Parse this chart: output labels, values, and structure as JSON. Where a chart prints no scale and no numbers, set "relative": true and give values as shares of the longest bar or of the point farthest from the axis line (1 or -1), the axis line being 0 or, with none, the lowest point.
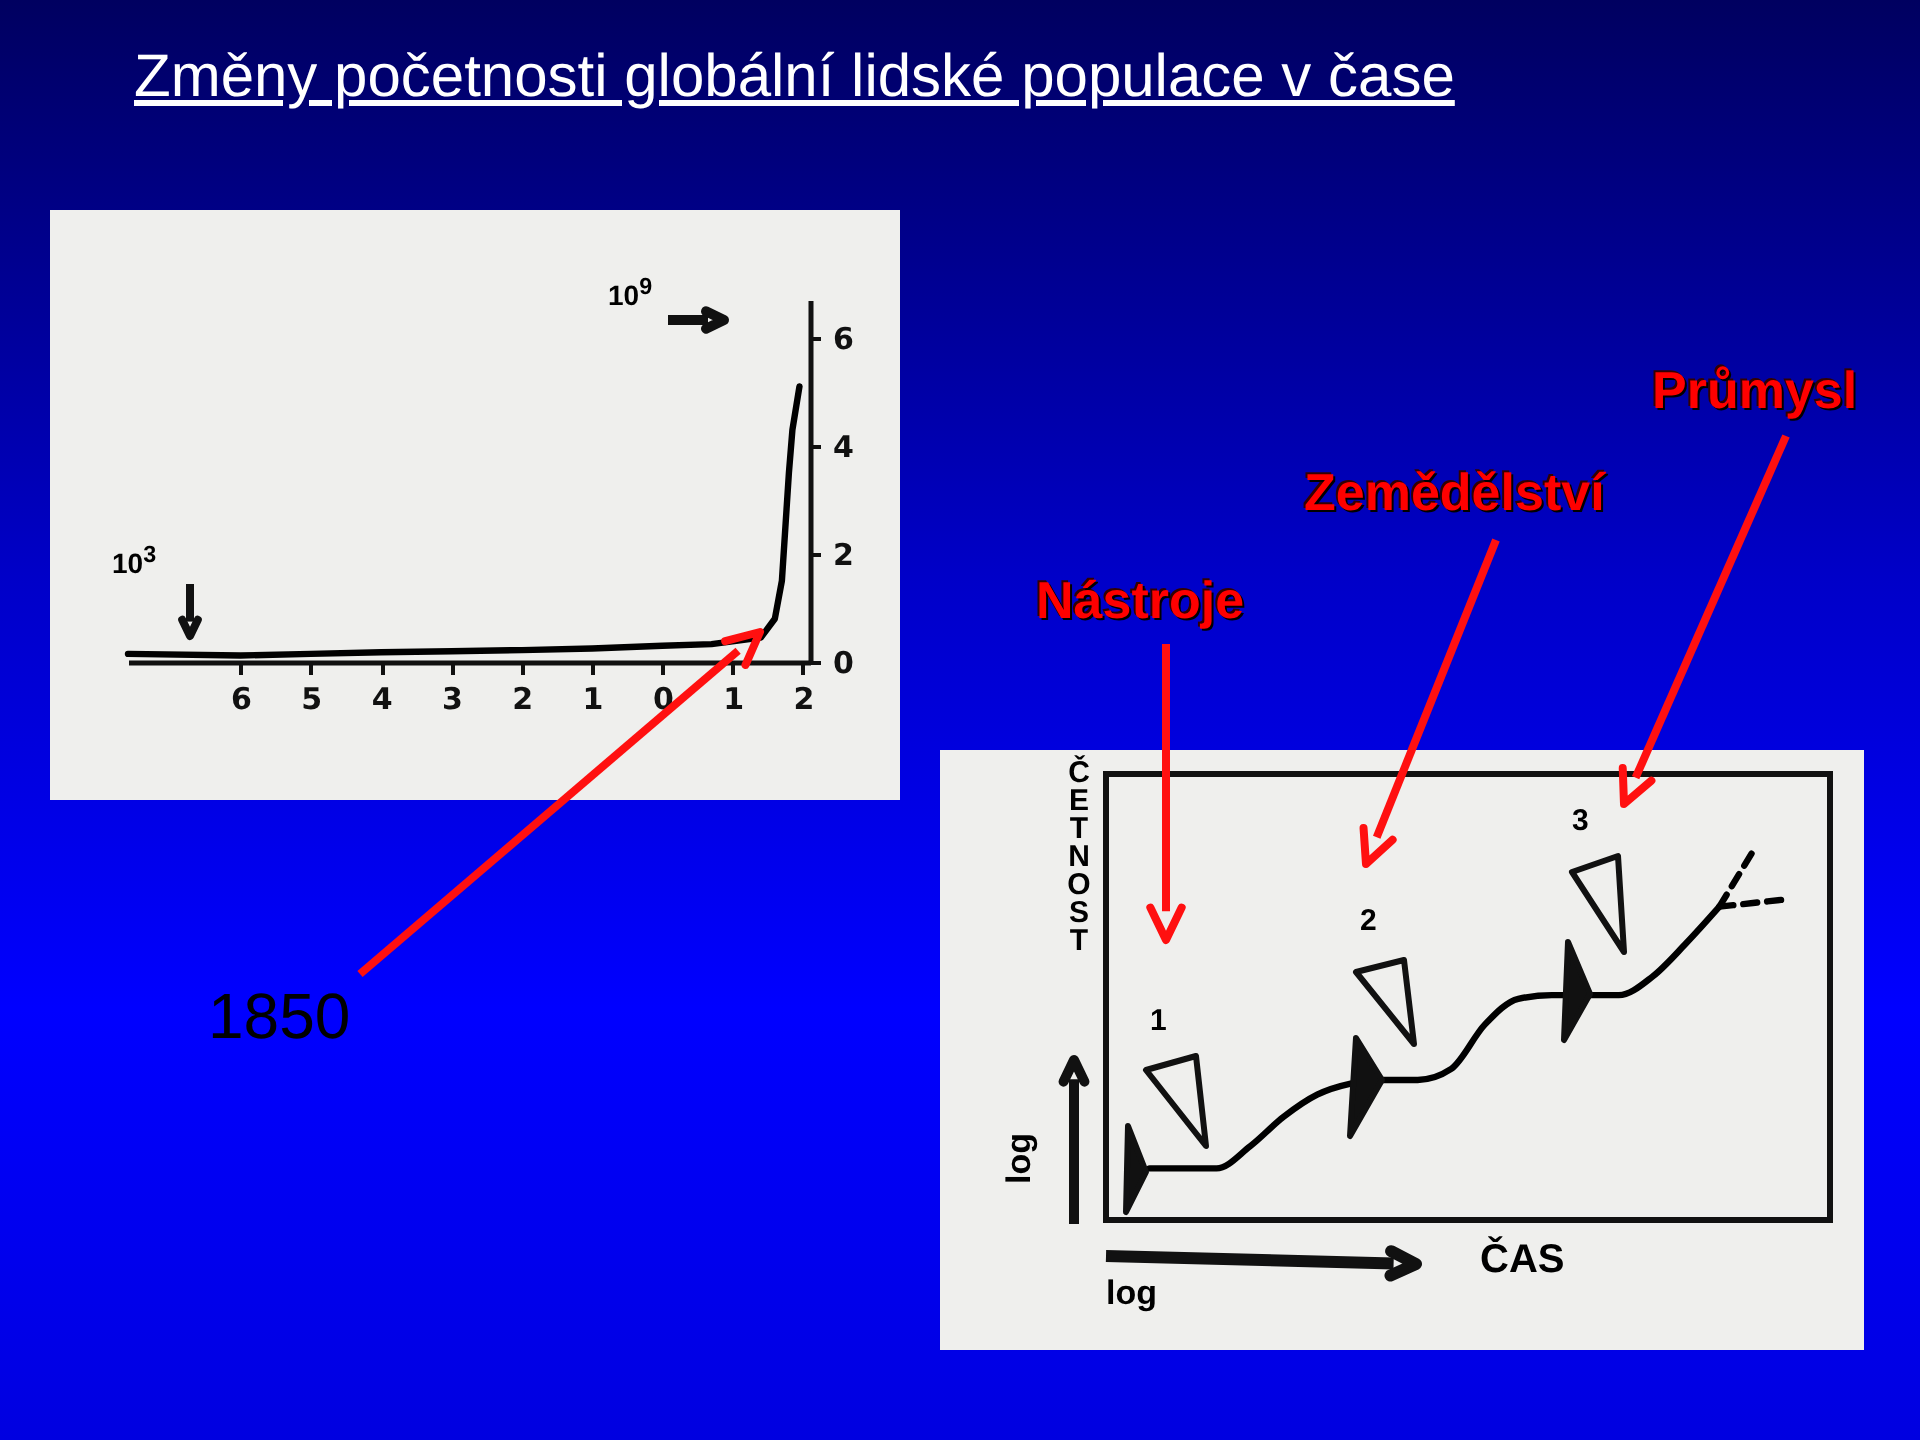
{
  "chart_data": [
    {
      "type": "line",
      "title": "Změny početnosti globální lidské populace v čase",
      "x": [
        -7.6,
        -6,
        -5,
        -4,
        -3,
        -2,
        -1,
        0,
        0.7,
        1.4,
        1.6,
        1.7,
        1.75,
        1.8,
        1.85,
        1.95
      ],
      "values": [
        0.15,
        0.12,
        0.15,
        0.18,
        0.2,
        0.22,
        0.25,
        0.3,
        0.33,
        0.45,
        0.8,
        1.5,
        2.5,
        3.5,
        4.3,
        5.1
      ],
      "color": "#000000",
      "xlim": [
        -7.6,
        2.1
      ],
      "xticks": [
        {
          "value": -6,
          "label": "6"
        },
        {
          "value": -5,
          "label": "5"
        },
        {
          "value": -4,
          "label": "4"
        },
        {
          "value": -3,
          "label": "3"
        },
        {
          "value": -2,
          "label": "2"
        },
        {
          "value": -1,
          "label": "1"
        },
        {
          "value": 0,
          "label": "0"
        },
        {
          "value": 1,
          "label": "1"
        },
        {
          "value": 2,
          "label": "2"
        }
      ],
      "ylim": [
        0,
        6.7
      ],
      "yticks": [
        0,
        2,
        4,
        6
      ],
      "annotations": [
        "10$^{3}$",
        "10$^{9}$",
        "1850"
      ]
    },
    {
      "type": "line",
      "relative": true,
      "xlabel": "ČAS",
      "ylabel": "ČETNOST",
      "categories": [
        null,
        null,
        null,
        null,
        null,
        null,
        null,
        null,
        null,
        null,
        null,
        null,
        null,
        null,
        null,
        null,
        null,
        null,
        null,
        null,
        null,
        null
      ],
      "series": [
        {
          "color": "#000000",
          "values": [
            null,
            0.14,
            0.14,
            0.14,
            0.2,
            0.28,
            0.34,
            0.37,
            0.38,
            0.38,
            0.41,
            0.53,
            0.6,
            0.61,
            0.61,
            0.61,
            0.66,
            0.75,
            0.85,
            null,
            null,
            null
          ]
        },
        {
          "color": "#000000",
          "line_style": "dashed",
          "values": [
            null,
            null,
            null,
            null,
            null,
            null,
            null,
            null,
            null,
            null,
            null,
            null,
            null,
            null,
            null,
            null,
            null,
            null,
            0.85,
            1,
            null,
            null
          ]
        },
        {
          "color": "#000000",
          "line_style": "dashed",
          "values": [
            null,
            null,
            null,
            null,
            null,
            null,
            null,
            null,
            null,
            null,
            null,
            null,
            null,
            null,
            null,
            null,
            null,
            null,
            0.85,
            0.86,
            0.87,
            null
          ]
        }
      ],
      "annotations": [
        "Nástroje",
        "Zemědělství",
        "Průmysl",
        "1",
        "2",
        "3",
        "log",
        "log"
      ]
    }
  ]
}
